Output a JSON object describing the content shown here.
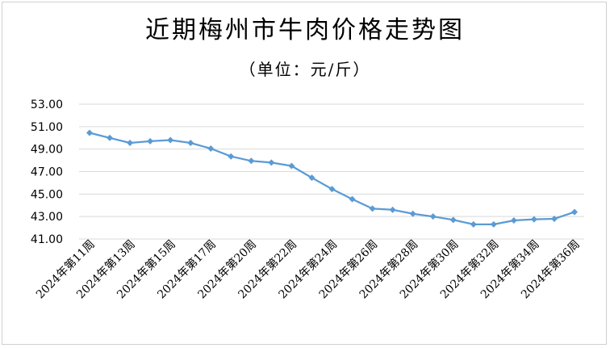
{
  "chart_data": {
    "type": "line",
    "title": "近期梅州市牛肉价格走势图",
    "subtitle": "（单位：元/斤）",
    "xlabel": "",
    "ylabel": "",
    "ylim": [
      41.0,
      53.0
    ],
    "y_ticks": [
      "53.00",
      "51.00",
      "49.00",
      "47.00",
      "45.00",
      "43.00",
      "41.00"
    ],
    "y_tick_values": [
      53,
      51,
      49,
      47,
      45,
      43,
      41
    ],
    "grid": "horizontal",
    "legend": "none",
    "x_tick_labels": [
      "2024年第11周",
      "2024年第13周",
      "2024年第15周",
      "2024年第17周",
      "2024年第20周",
      "2024年第22周",
      "2024年第24周",
      "2024年第26周",
      "2024年第28周",
      "2024年第30周",
      "2024年第32周",
      "2024年第34周",
      "2024年第36周"
    ],
    "series": [
      {
        "color": "#5b9bd5",
        "values": [
          50.45,
          50.0,
          49.55,
          49.7,
          49.8,
          49.55,
          49.05,
          48.35,
          47.95,
          47.8,
          47.5,
          46.45,
          45.45,
          44.55,
          43.7,
          43.6,
          43.25,
          43.0,
          42.7,
          42.3,
          42.3,
          42.65,
          42.75,
          42.8,
          43.4
        ]
      }
    ]
  }
}
